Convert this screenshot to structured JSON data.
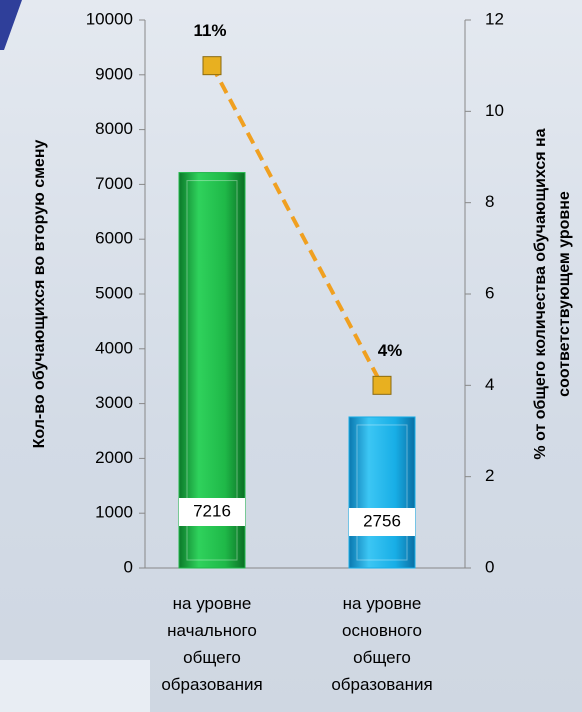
{
  "chart_data": {
    "type": "bar+line",
    "categories": [
      "на уровне начального общего образования",
      "на уровне основного общего образования"
    ],
    "y_label": "Кол-во обучающихся во вторую смену",
    "y2_label": "% от общего количества обучающихся на соответствующем уровне",
    "series": [
      {
        "type": "bar",
        "colors": [
          "#1fb848",
          "#18aee6"
        ],
        "values": [
          7216,
          2756
        ]
      },
      {
        "type": "line",
        "axis": "y2",
        "color": "#f0a020",
        "marker_color": "#e8b020",
        "values": [
          11,
          4
        ],
        "value_labels": [
          "11%",
          "4%"
        ]
      }
    ],
    "ylim": [
      0,
      10000
    ],
    "yticks": [
      0,
      1000,
      2000,
      3000,
      4000,
      5000,
      6000,
      7000,
      8000,
      9000,
      10000
    ],
    "y2lim": [
      0,
      12
    ],
    "y2ticks": [
      0,
      2,
      4,
      6,
      8,
      10,
      12
    ]
  }
}
